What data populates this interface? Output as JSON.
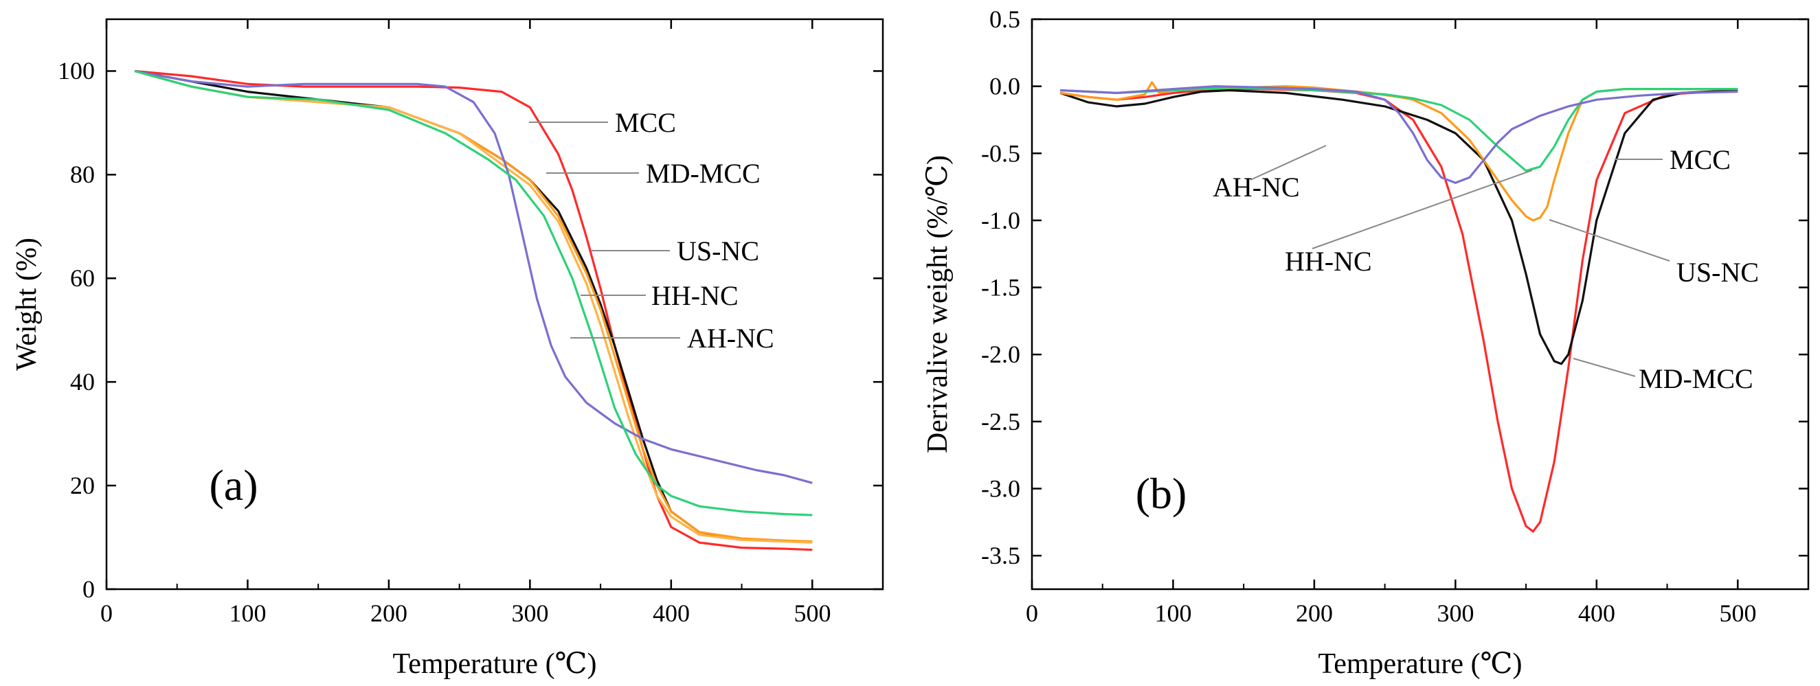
{
  "chart_data": [
    {
      "panel": "(a)",
      "type": "line",
      "xlabel": "Temperature (℃)",
      "ylabel": "Weight (%)",
      "xlim": [
        0,
        550
      ],
      "ylim": [
        0,
        110
      ],
      "xticks": [
        0,
        100,
        200,
        300,
        400,
        500
      ],
      "yticks": [
        0,
        20,
        40,
        60,
        80,
        100
      ],
      "series": [
        {
          "name": "MCC",
          "color": "#ff2a2a",
          "x": [
            20,
            60,
            100,
            140,
            180,
            220,
            250,
            280,
            300,
            320,
            330,
            340,
            350,
            360,
            370,
            380,
            390,
            400,
            420,
            450,
            480,
            500
          ],
          "y": [
            100,
            99,
            97.5,
            97,
            97,
            97,
            96.8,
            96,
            93,
            84,
            77,
            68,
            58,
            47,
            37,
            27,
            18,
            12,
            9,
            8,
            7.8,
            7.6
          ]
        },
        {
          "name": "MD-MCC",
          "color": "#111111",
          "x": [
            20,
            60,
            100,
            150,
            200,
            250,
            280,
            300,
            320,
            340,
            350,
            360,
            370,
            380,
            390,
            400,
            420,
            450,
            480,
            500
          ],
          "y": [
            100,
            98,
            96,
            94.5,
            93,
            88,
            83,
            79,
            73,
            62,
            55,
            47,
            38,
            29,
            21,
            15,
            11,
            9.6,
            9.3,
            9.2
          ]
        },
        {
          "name": "US-NC",
          "color": "#ff9a1a",
          "x": [
            20,
            60,
            100,
            150,
            200,
            250,
            280,
            300,
            320,
            340,
            350,
            360,
            370,
            380,
            390,
            400,
            420,
            450,
            480,
            500
          ],
          "y": [
            100,
            97,
            95,
            94,
            93,
            88,
            83,
            79,
            72,
            61,
            54,
            45,
            36,
            27,
            20,
            15,
            11,
            9.8,
            9.4,
            9.2
          ]
        },
        {
          "name": "HH-NC",
          "color": "#ffb347",
          "x": [
            20,
            60,
            100,
            150,
            200,
            250,
            280,
            300,
            320,
            340,
            350,
            360,
            370,
            380,
            390,
            400,
            420,
            450,
            480,
            500
          ],
          "y": [
            100,
            97,
            95,
            94,
            93,
            88,
            82,
            78,
            71,
            59,
            51,
            42,
            33,
            25,
            18,
            14,
            10.5,
            9.5,
            9.2,
            9
          ]
        },
        {
          "name": "AH-NC",
          "color": "#7a6fd0",
          "x": [
            20,
            60,
            100,
            140,
            180,
            220,
            240,
            260,
            275,
            285,
            295,
            305,
            315,
            325,
            340,
            360,
            380,
            400,
            430,
            460,
            480,
            500
          ],
          "y": [
            100,
            98,
            97,
            97.5,
            97.5,
            97.5,
            97,
            94,
            88,
            80,
            68,
            56,
            47,
            41,
            36,
            32,
            29,
            27,
            25,
            23,
            22,
            20.5
          ]
        },
        {
          "name": "",
          "color": "#2ed178",
          "x": [
            20,
            60,
            100,
            150,
            200,
            240,
            270,
            290,
            310,
            330,
            345,
            360,
            375,
            390,
            400,
            420,
            450,
            480,
            500
          ],
          "y": [
            100,
            97,
            95,
            94.5,
            92.5,
            88,
            83,
            79,
            72,
            60,
            48,
            35,
            26,
            20,
            18,
            16,
            15,
            14.5,
            14.3
          ]
        }
      ],
      "annotations": [
        "MCC",
        "MD-MCC",
        "US-NC",
        "HH-NC",
        "AH-NC"
      ]
    },
    {
      "panel": "(b)",
      "type": "line",
      "xlabel": "Temperature (℃)",
      "ylabel": "Derivalive weight (%/℃)",
      "xlim": [
        0,
        550
      ],
      "ylim": [
        -3.75,
        0.5
      ],
      "xticks": [
        0,
        100,
        200,
        300,
        400,
        500
      ],
      "yticks": [
        0.5,
        0.0,
        -0.5,
        -1.0,
        -1.5,
        -2.0,
        -2.5,
        -3.0,
        -3.5
      ],
      "ytick_labels": [
        "0.5",
        "0.0",
        "-0.5",
        "-1.0",
        "-1.5",
        "-2.0",
        "-2.5",
        "-3.0",
        "-3.5"
      ],
      "series": [
        {
          "name": "MCC",
          "color": "#ff2a2a",
          "x": [
            20,
            40,
            60,
            80,
            100,
            130,
            160,
            200,
            230,
            250,
            270,
            290,
            305,
            320,
            330,
            340,
            350,
            355,
            360,
            370,
            380,
            390,
            400,
            420,
            450,
            500
          ],
          "y": [
            -0.05,
            -0.08,
            -0.1,
            -0.08,
            -0.05,
            -0.02,
            -0.02,
            -0.03,
            -0.05,
            -0.1,
            -0.25,
            -0.6,
            -1.1,
            -1.9,
            -2.5,
            -3.0,
            -3.28,
            -3.32,
            -3.25,
            -2.8,
            -2.1,
            -1.3,
            -0.7,
            -0.2,
            -0.06,
            -0.03
          ]
        },
        {
          "name": "MD-MCC",
          "color": "#111111",
          "x": [
            20,
            40,
            60,
            80,
            100,
            120,
            140,
            180,
            220,
            250,
            280,
            300,
            320,
            340,
            350,
            360,
            370,
            375,
            380,
            390,
            400,
            420,
            440,
            460,
            500
          ],
          "y": [
            -0.05,
            -0.12,
            -0.15,
            -0.13,
            -0.08,
            -0.04,
            -0.03,
            -0.05,
            -0.1,
            -0.15,
            -0.25,
            -0.35,
            -0.55,
            -1.0,
            -1.4,
            -1.85,
            -2.05,
            -2.07,
            -2.0,
            -1.6,
            -1.0,
            -0.35,
            -0.1,
            -0.05,
            -0.03
          ]
        },
        {
          "name": "US-NC",
          "color": "#ff9a1a",
          "x": [
            20,
            40,
            60,
            80,
            85,
            90,
            100,
            120,
            150,
            180,
            200,
            220,
            240,
            260,
            270,
            280,
            290,
            300,
            310,
            320,
            330,
            340,
            350,
            355,
            360,
            365,
            370,
            380,
            390,
            400,
            420,
            450,
            500
          ],
          "y": [
            -0.05,
            -0.08,
            -0.1,
            -0.06,
            0.03,
            -0.05,
            -0.03,
            -0.02,
            -0.01,
            0.0,
            -0.01,
            -0.03,
            -0.05,
            -0.08,
            -0.1,
            -0.15,
            -0.2,
            -0.3,
            -0.4,
            -0.55,
            -0.7,
            -0.85,
            -0.97,
            -1.0,
            -0.98,
            -0.9,
            -0.7,
            -0.35,
            -0.1,
            -0.04,
            -0.02,
            -0.02,
            -0.02
          ]
        },
        {
          "name": "HH-NC",
          "color": "#2ed178",
          "x": [
            20,
            60,
            100,
            140,
            180,
            220,
            250,
            270,
            290,
            310,
            330,
            350,
            360,
            370,
            380,
            390,
            400,
            420,
            460,
            500
          ],
          "y": [
            -0.03,
            -0.05,
            -0.03,
            -0.01,
            -0.02,
            -0.04,
            -0.06,
            -0.09,
            -0.14,
            -0.25,
            -0.45,
            -0.63,
            -0.6,
            -0.45,
            -0.25,
            -0.1,
            -0.04,
            -0.02,
            -0.02,
            -0.02
          ]
        },
        {
          "name": "AH-NC",
          "color": "#7a6fd0",
          "x": [
            20,
            60,
            100,
            130,
            170,
            200,
            230,
            250,
            260,
            270,
            280,
            290,
            300,
            310,
            320,
            330,
            340,
            360,
            380,
            400,
            430,
            460,
            500
          ],
          "y": [
            -0.03,
            -0.05,
            -0.02,
            0.0,
            -0.01,
            -0.02,
            -0.04,
            -0.1,
            -0.2,
            -0.35,
            -0.55,
            -0.68,
            -0.72,
            -0.68,
            -0.55,
            -0.42,
            -0.32,
            -0.22,
            -0.15,
            -0.1,
            -0.07,
            -0.05,
            -0.04
          ]
        }
      ],
      "annotations": [
        "AH-NC",
        "HH-NC",
        "MCC",
        "US-NC",
        "MD-MCC"
      ]
    }
  ]
}
